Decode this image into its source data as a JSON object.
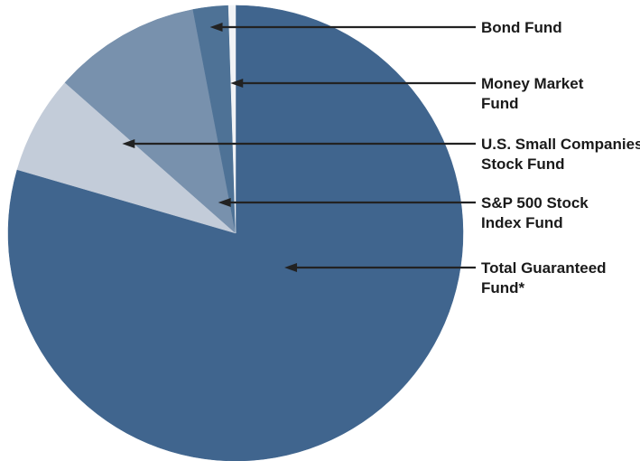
{
  "chart_data": {
    "type": "pie",
    "title": "",
    "start_angle_deg": 0,
    "direction": "clockwise",
    "slices": [
      {
        "label": "Total Guaranteed Fund*",
        "lines": [
          "Total Guaranteed",
          "Fund*"
        ],
        "value": 79.5,
        "color": "#40658e"
      },
      {
        "label": "U.S. Small Companies Stock Fund",
        "lines": [
          "U.S. Small Companies",
          "Stock Fund"
        ],
        "value": 7.0,
        "color": "#c3ccd9"
      },
      {
        "label": "S&P 500 Stock Index Fund",
        "lines": [
          "S&P 500 Stock",
          "Index Fund"
        ],
        "value": 10.5,
        "color": "#7891ad"
      },
      {
        "label": "Bond Fund",
        "lines": [
          "Bond Fund"
        ],
        "value": 2.5,
        "color": "#4e7296"
      },
      {
        "label": "Money Market Fund",
        "lines": [
          "Money Market",
          "Fund"
        ],
        "value": 0.5,
        "color": "#f1f3f6"
      }
    ],
    "legend_order": [
      "Bond Fund",
      "Money Market Fund",
      "U.S. Small Companies Stock Fund",
      "S&P 500 Stock Index Fund",
      "Total Guaranteed Fund*"
    ]
  }
}
